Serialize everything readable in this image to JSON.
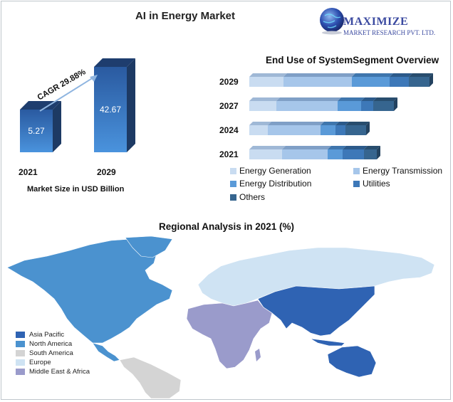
{
  "header": {
    "title": "AI in Energy Market",
    "logo_line1": "MAXIMIZE",
    "logo_line2": "MARKET RESEARCH PVT. LTD."
  },
  "market_size": {
    "cagr_label": "CAGR 29.88%",
    "caption": "Market Size in USD Billion",
    "value_labels": [
      "5.27",
      "42.67"
    ],
    "year_labels": [
      "2021",
      "2029"
    ]
  },
  "segment": {
    "title": "End Use of SystemSegment Overview",
    "years": [
      "2029",
      "2027",
      "2024",
      "2021"
    ],
    "legend": [
      "Energy Generation",
      "Energy Transmission",
      "Energy Distribution",
      "Utilities",
      "Others"
    ]
  },
  "regional": {
    "title": "Regional Analysis in 2021 (%)",
    "legend": [
      "Asia Pacific",
      "North America",
      "South America",
      "Europe",
      "Middle East & Africa"
    ]
  },
  "colors": {
    "bar_blue": "#3a78c2",
    "segment_colors": [
      "#c9dcf1",
      "#a6c6ea",
      "#5a9ad8",
      "#3d78b8",
      "#36658f"
    ],
    "asia_pacific": "#2f63b3",
    "north_america": "#4b92cf",
    "south_america": "#d4d4d4",
    "europe": "#cfe3f3",
    "mea": "#9a9bcb"
  },
  "chart_data": [
    {
      "type": "bar",
      "title": "",
      "categories": [
        "2021",
        "2029"
      ],
      "values": [
        5.27,
        42.67
      ],
      "xlabel": "",
      "ylabel": "Market Size in USD Billion",
      "annotation": "CAGR 29.88%"
    },
    {
      "type": "bar",
      "orientation": "horizontal",
      "stacked": true,
      "title": "End Use of SystemSegment Overview",
      "categories": [
        "2029",
        "2027",
        "2024",
        "2021"
      ],
      "series": [
        {
          "name": "Energy Generation",
          "values": [
            48,
            38,
            26,
            46
          ]
        },
        {
          "name": "Energy Transmission",
          "values": [
            96,
            86,
            74,
            64
          ]
        },
        {
          "name": "Energy Distribution",
          "values": [
            53,
            33,
            21,
            21
          ]
        },
        {
          "name": "Utilities",
          "values": [
            27,
            17,
            14,
            30
          ]
        },
        {
          "name": "Others",
          "values": [
            29,
            29,
            29,
            18
          ]
        }
      ]
    }
  ]
}
